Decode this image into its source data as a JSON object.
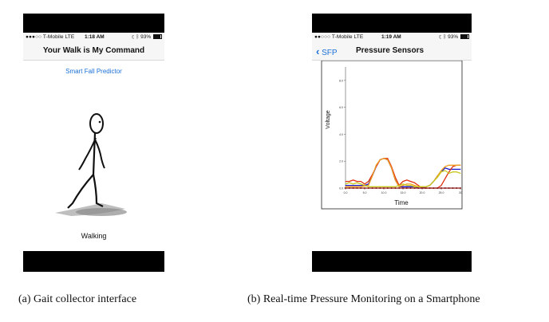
{
  "left_phone": {
    "status": {
      "carrier": "●●●○○ T-Mobile  LTE",
      "time": "1:18 AM",
      "battery": "93%",
      "icons": [
        "moon-icon",
        "bluetooth-icon"
      ]
    },
    "title": "Your Walk is My Command",
    "link": "Smart Fall Predictor",
    "status_label": "Walking"
  },
  "right_phone": {
    "status": {
      "carrier": "●●○○○ T-Mobile  LTE",
      "time": "1:19 AM",
      "battery": "93%",
      "icons": [
        "moon-icon",
        "bluetooth-icon"
      ]
    },
    "back_label": "SFP",
    "title": "Pressure Sensors"
  },
  "captions": {
    "left": "(a) Gait collector interface",
    "right": "(b) Real-time Pressure Monitoring on a Smartphone"
  },
  "chart_data": {
    "type": "line",
    "xlabel": "Time",
    "ylabel": "Voltage",
    "xlim": [
      0,
      30
    ],
    "ylim": [
      0,
      9
    ],
    "x_ticks": [
      "0.0",
      "5.0",
      "10.0",
      "15.0",
      "20.0",
      "25.0",
      "30"
    ],
    "y_ticks": [
      "0.0",
      "2.0",
      "4.0",
      "6.0",
      "8.0"
    ],
    "series": [
      {
        "color": "#1a1acc",
        "x": [
          0,
          2,
          4,
          5,
          6,
          7,
          8,
          9,
          10,
          11,
          12,
          13,
          14,
          15,
          16,
          17,
          18,
          19,
          20,
          21,
          22,
          23,
          24,
          25,
          26,
          27,
          28,
          29,
          30
        ],
        "y": [
          0.2,
          0.2,
          0.2,
          0.2,
          0.3,
          0.9,
          1.6,
          2.1,
          2.2,
          2.1,
          1.5,
          0.6,
          0.1,
          0.1,
          0.1,
          0.1,
          0.1,
          0.0,
          0.0,
          0.1,
          0.2,
          0.5,
          0.9,
          1.2,
          1.5,
          1.4,
          1.4,
          1.4,
          1.4
        ]
      },
      {
        "color": "#e03010",
        "x": [
          0,
          1,
          2,
          3,
          4,
          5,
          6,
          7,
          8,
          9,
          10,
          11,
          12,
          13,
          14,
          15,
          16,
          17,
          18,
          19,
          20,
          21,
          22,
          23,
          24,
          25,
          26,
          27,
          28,
          29,
          30
        ],
        "y": [
          0.5,
          0.5,
          0.6,
          0.5,
          0.5,
          0.3,
          0.5,
          1.0,
          1.6,
          2.1,
          2.2,
          2.2,
          1.6,
          0.8,
          0.2,
          0.5,
          0.6,
          0.5,
          0.4,
          0.2,
          0.0,
          0.0,
          0.0,
          0.0,
          0.0,
          0.2,
          0.7,
          1.2,
          1.6,
          1.7,
          1.7
        ]
      },
      {
        "color": "#f0a020",
        "x": [
          0,
          2,
          4,
          6,
          7,
          8,
          9,
          10,
          11,
          12,
          13,
          14,
          15,
          16,
          17,
          18,
          19,
          20,
          21,
          22,
          23,
          24,
          25,
          26,
          27,
          28,
          29,
          30
        ],
        "y": [
          0.1,
          0.1,
          0.1,
          0.2,
          0.9,
          1.7,
          2.1,
          2.2,
          2.1,
          1.5,
          0.6,
          0.1,
          0.2,
          0.3,
          0.3,
          0.2,
          0.1,
          0.1,
          0.1,
          0.2,
          0.5,
          0.9,
          1.3,
          1.6,
          1.7,
          1.7,
          1.7,
          1.7
        ]
      },
      {
        "color": "#c8c820",
        "x": [
          0,
          1,
          2,
          3,
          4,
          5,
          6,
          7,
          8,
          9,
          10,
          11,
          12,
          13,
          14,
          15,
          16,
          17,
          18,
          19,
          20,
          21,
          22,
          23,
          24,
          25,
          26,
          27,
          28,
          29,
          30
        ],
        "y": [
          0.3,
          0.4,
          0.3,
          0.4,
          0.3,
          0.2,
          0.1,
          0.1,
          0.1,
          0.1,
          0.1,
          0.1,
          0.1,
          0.1,
          0.2,
          0.3,
          0.2,
          0.2,
          0.1,
          0.1,
          0.1,
          0.1,
          0.2,
          0.5,
          0.8,
          1.2,
          1.3,
          1.1,
          1.2,
          1.2,
          1.1
        ]
      },
      {
        "color": "#8a1a1a",
        "x": [
          0,
          1,
          2,
          3,
          4,
          5,
          6,
          7,
          8,
          9,
          10,
          11,
          12,
          13,
          14,
          15,
          16,
          17,
          18,
          19,
          20,
          21,
          22,
          23,
          24,
          25,
          26,
          27,
          28,
          29,
          30
        ],
        "y": [
          0,
          0,
          0,
          0,
          0,
          0,
          0,
          0,
          0,
          0,
          0,
          0,
          0,
          0,
          0,
          0,
          0,
          0,
          0,
          0,
          0,
          0,
          0,
          0,
          0,
          0,
          0,
          0,
          0,
          0,
          0
        ],
        "markers": true
      }
    ]
  }
}
